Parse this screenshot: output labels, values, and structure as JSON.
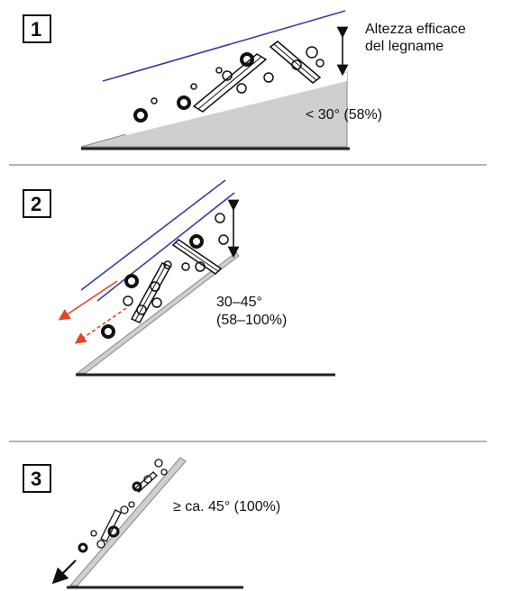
{
  "panels": [
    {
      "number": "1",
      "height_label_line1": "Altezza efficace",
      "height_label_line2": "del legname",
      "angle_label": "< 30° (58%)"
    },
    {
      "number": "2",
      "angle_label_line1": "30–45°",
      "angle_label_line2": "(58–100%)"
    },
    {
      "number": "3",
      "angle_label": "≥ ca. 45° (100%)"
    }
  ],
  "colors": {
    "slope_fill": "#cfcfcf",
    "line": "#222222",
    "blue_line": "#3a3aaa",
    "red_arrow": "#e0452a",
    "divider": "#9a9a9a"
  }
}
